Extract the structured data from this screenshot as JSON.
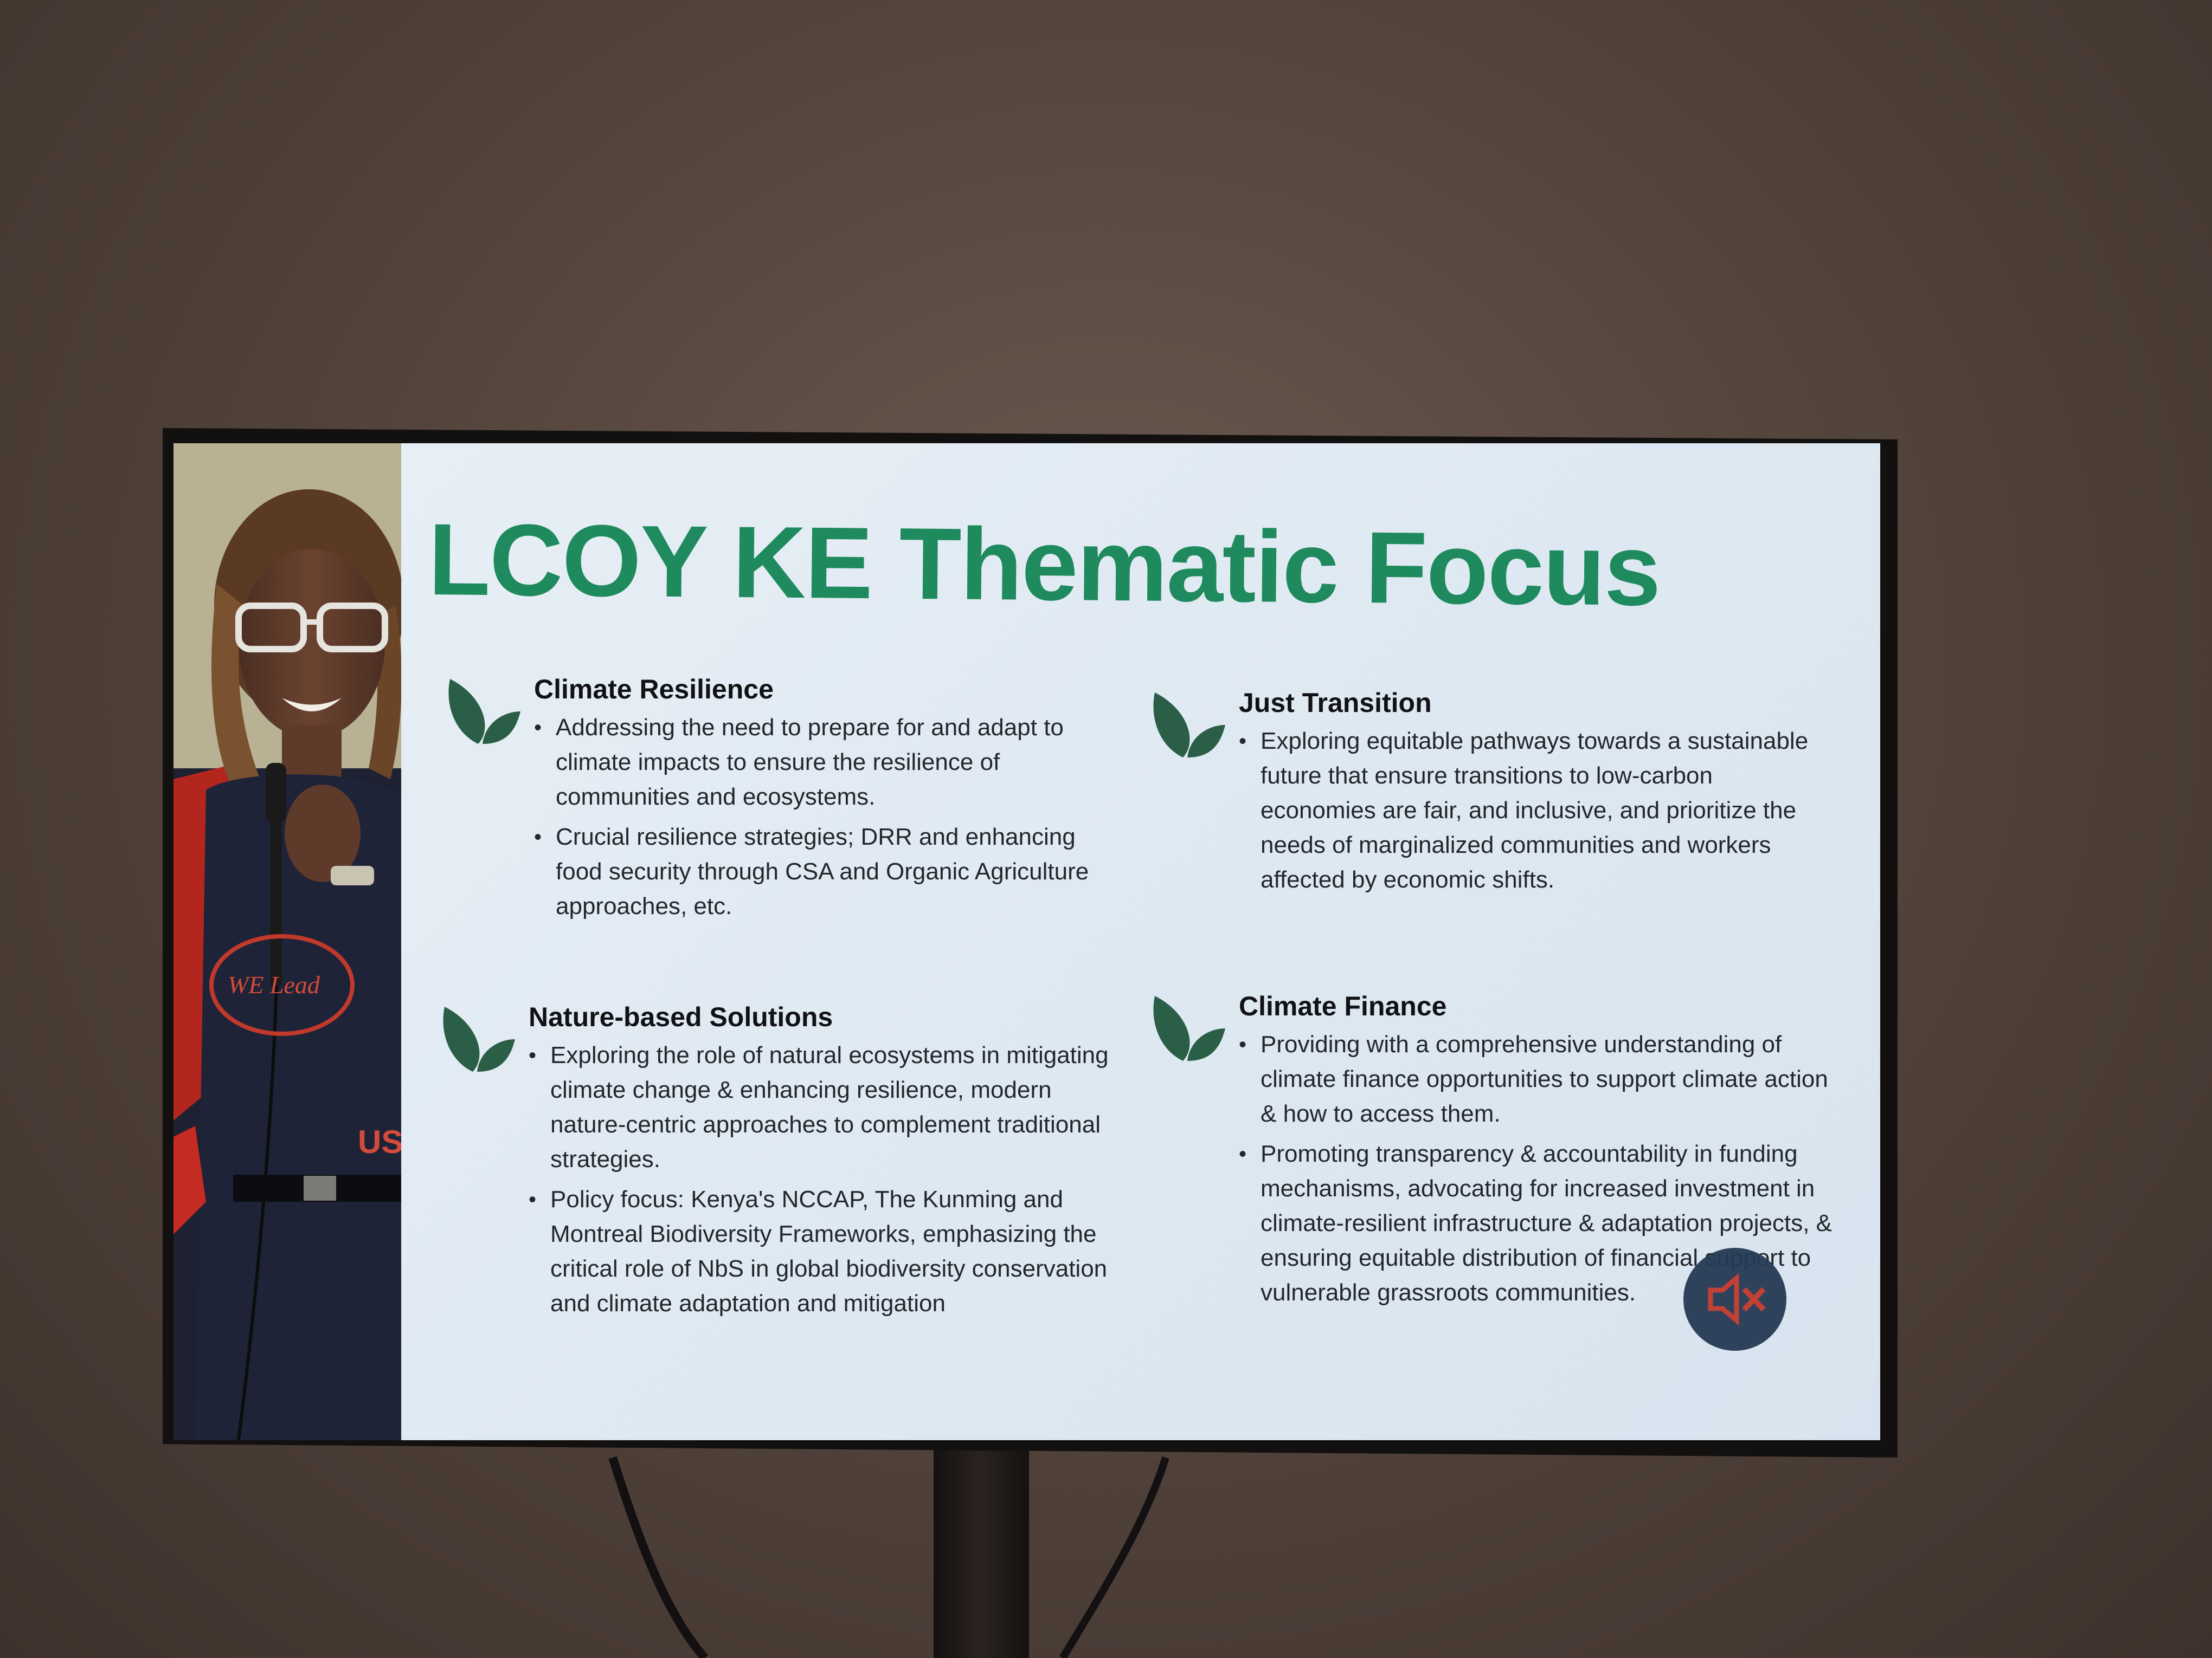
{
  "slide": {
    "title": "LCOY KE Thematic Focus",
    "title_color": "#1f8a5d",
    "leaf_color": "#2a5e47",
    "sections": [
      {
        "heading": "Climate Resilience",
        "bullets": [
          "Addressing the need to prepare for and adapt to climate impacts to ensure the resilience of communities and ecosystems.",
          "Crucial resilience strategies; DRR and enhancing food security through CSA and Organic Agriculture approaches, etc."
        ]
      },
      {
        "heading": "Just Transition",
        "bullets": [
          "Exploring equitable pathways towards a sustainable future that ensure transitions to low-carbon economies are fair, and inclusive, and prioritize the needs of marginalized communities and workers affected by economic shifts."
        ]
      },
      {
        "heading": "Nature-based Solutions",
        "bullets": [
          "Exploring the role of natural ecosystems in mitigating climate change & enhancing resilience, modern nature-centric approaches to complement traditional strategies.",
          "Policy focus: Kenya's NCCAP, The Kunming and Montreal Biodiversity Frameworks, emphasizing the critical role of NbS in global biodiversity conservation and climate adaptation and mitigation"
        ]
      },
      {
        "heading": "Climate Finance",
        "bullets": [
          "Providing with a comprehensive understanding of climate finance opportunities to support climate action & how to access them.",
          "Promoting transparency & accountability in funding mechanisms, advocating for increased investment in climate-resilient infrastructure & adaptation projects, & ensuring equitable distribution of financial support to vulnerable grassroots communities."
        ]
      }
    ]
  },
  "photo": {
    "shirt_text_top": "WE Lead",
    "shirt_text_bottom": "US"
  },
  "overlay": {
    "icon": "speaker-muted-icon",
    "icon_color": "#c0392b"
  }
}
